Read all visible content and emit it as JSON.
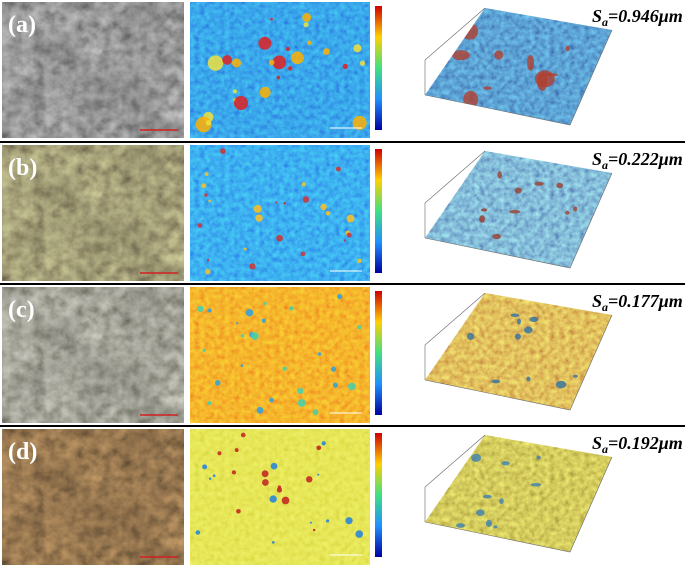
{
  "panels": [
    {
      "label": "(a)",
      "sa_symbol": "S",
      "sa_subscript": "a",
      "sa_value": "=0.946μm"
    },
    {
      "label": "(b)",
      "sa_symbol": "S",
      "sa_subscript": "a",
      "sa_value": "=0.222μm"
    },
    {
      "label": "(c)",
      "sa_symbol": "S",
      "sa_subscript": "a",
      "sa_value": "=0.177μm"
    },
    {
      "label": "(d)",
      "sa_symbol": "S",
      "sa_subscript": "a",
      "sa_value": "=0.192μm"
    }
  ]
}
